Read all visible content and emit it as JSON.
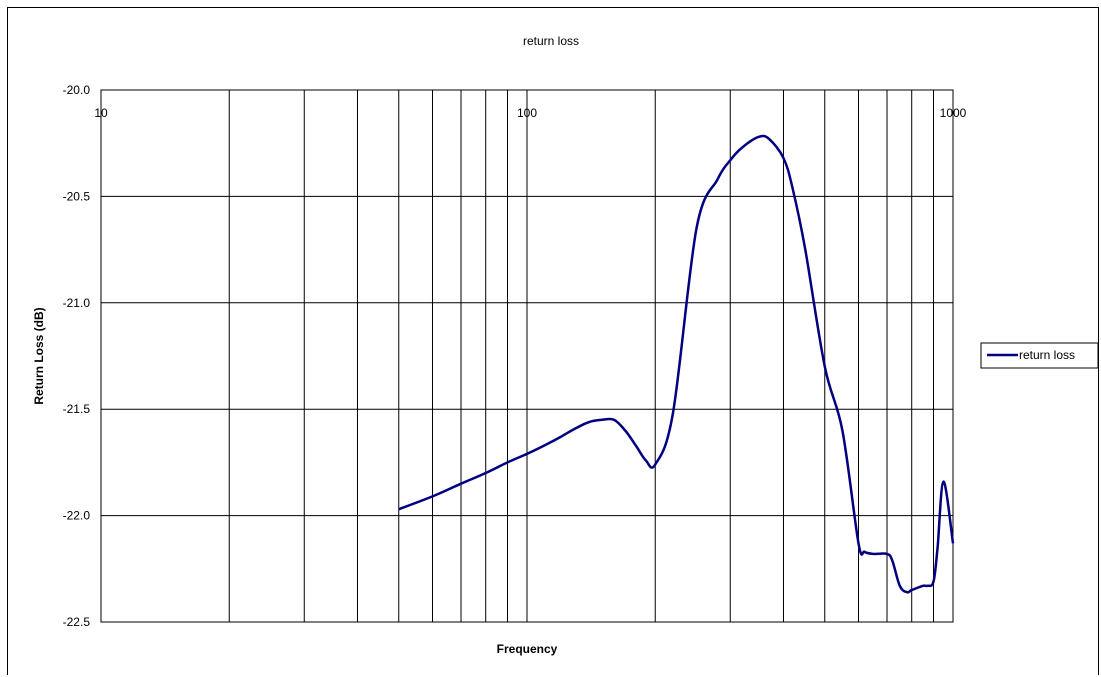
{
  "chart_data": {
    "type": "line",
    "title": "return loss",
    "xlabel": "Frequency",
    "ylabel": "Return Loss (dB)",
    "x_scale": "log",
    "xlim": [
      10,
      1000
    ],
    "ylim": [
      -22.5,
      -20.0
    ],
    "y_ticks": [
      -20.0,
      -20.5,
      -21.0,
      -21.5,
      -22.0,
      -22.5
    ],
    "y_tick_labels": [
      "-20.0",
      "-20.5",
      "-21.0",
      "-21.5",
      "-22.0",
      "-22.5"
    ],
    "x_tick_labels": [
      "10",
      "100",
      "1000"
    ],
    "x_ticks": [
      10,
      100,
      1000
    ],
    "grid": true,
    "legend_position": "right",
    "series": [
      {
        "name": "return loss",
        "color": "#000080",
        "x": [
          50,
          60,
          70,
          80,
          90,
          100,
          110,
          120,
          130,
          140,
          150,
          160,
          170,
          180,
          190,
          200,
          220,
          250,
          280,
          300,
          320,
          350,
          370,
          400,
          420,
          450,
          500,
          550,
          600,
          620,
          650,
          700,
          720,
          750,
          780,
          800,
          850,
          870,
          900,
          920,
          950,
          1000
        ],
        "y": [
          -21.97,
          -21.91,
          -21.85,
          -21.8,
          -21.75,
          -21.71,
          -21.67,
          -21.63,
          -21.59,
          -21.56,
          -21.55,
          -21.55,
          -21.6,
          -21.67,
          -21.74,
          -21.76,
          -21.52,
          -20.65,
          -20.42,
          -20.33,
          -20.27,
          -20.22,
          -20.23,
          -20.32,
          -20.46,
          -20.75,
          -21.3,
          -21.6,
          -22.13,
          -22.17,
          -22.18,
          -22.18,
          -22.21,
          -22.33,
          -22.36,
          -22.35,
          -22.33,
          -22.33,
          -22.31,
          -22.15,
          -21.84,
          -22.13
        ]
      }
    ]
  }
}
